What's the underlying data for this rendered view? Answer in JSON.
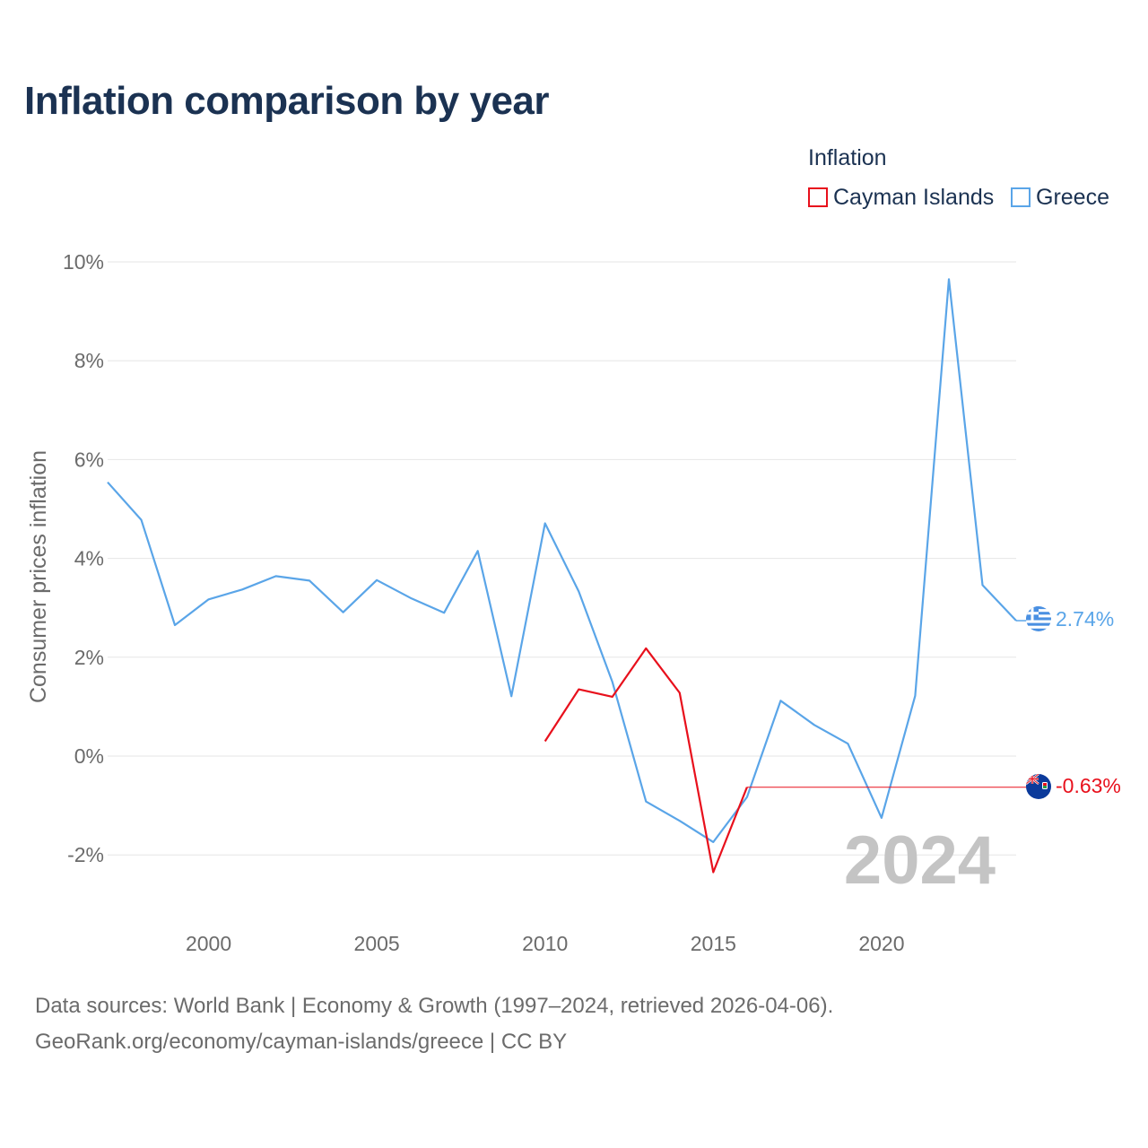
{
  "title": "Inflation comparison by year",
  "legend": {
    "title": "Inflation",
    "items": [
      {
        "label": "Cayman Islands",
        "color": "#e8101c"
      },
      {
        "label": "Greece",
        "color": "#5aa5e8"
      }
    ]
  },
  "watermark_year": "2024",
  "end_labels": {
    "greece": "2.74%",
    "cayman": "-0.63%"
  },
  "footer": {
    "line1": "Data sources: World Bank | Economy & Growth (1997–2024, retrieved 2026-04-06).",
    "line2": "GeoRank.org/economy/cayman-islands/greece | CC BY"
  },
  "chart_data": {
    "type": "line",
    "title": "Inflation comparison by year",
    "xlabel": "",
    "ylabel": "Consumer prices inflation",
    "xlim": [
      1997,
      2024
    ],
    "ylim": [
      -3,
      10
    ],
    "x_ticks": [
      2000,
      2005,
      2010,
      2015,
      2020
    ],
    "x_tick_labels": [
      "2000",
      "2005",
      "2010",
      "2015",
      "2020"
    ],
    "y_ticks": [
      -2,
      0,
      2,
      4,
      6,
      8,
      10
    ],
    "y_tick_labels": [
      "-2%",
      "0%",
      "2%",
      "4%",
      "6%",
      "8%",
      "10%"
    ],
    "grid": true,
    "legend_position": "top-right",
    "series": [
      {
        "name": "Cayman Islands",
        "color": "#e8101c",
        "points": [
          {
            "x": 2010,
            "y": 0.3
          },
          {
            "x": 2011,
            "y": 1.35
          },
          {
            "x": 2012,
            "y": 1.2
          },
          {
            "x": 2013,
            "y": 2.18
          },
          {
            "x": 2014,
            "y": 1.28
          },
          {
            "x": 2015,
            "y": -2.35
          },
          {
            "x": 2016,
            "y": -0.63
          }
        ],
        "carried_to": 2024,
        "last_value": -0.63
      },
      {
        "name": "Greece",
        "color": "#5aa5e8",
        "points": [
          {
            "x": 1997,
            "y": 5.54
          },
          {
            "x": 1998,
            "y": 4.78
          },
          {
            "x": 1999,
            "y": 2.65
          },
          {
            "x": 2000,
            "y": 3.17
          },
          {
            "x": 2001,
            "y": 3.37
          },
          {
            "x": 2002,
            "y": 3.64
          },
          {
            "x": 2003,
            "y": 3.55
          },
          {
            "x": 2004,
            "y": 2.91
          },
          {
            "x": 2005,
            "y": 3.56
          },
          {
            "x": 2006,
            "y": 3.2
          },
          {
            "x": 2007,
            "y": 2.9
          },
          {
            "x": 2008,
            "y": 4.15
          },
          {
            "x": 2009,
            "y": 1.21
          },
          {
            "x": 2010,
            "y": 4.71
          },
          {
            "x": 2011,
            "y": 3.33
          },
          {
            "x": 2012,
            "y": 1.5
          },
          {
            "x": 2013,
            "y": -0.92
          },
          {
            "x": 2014,
            "y": -1.31
          },
          {
            "x": 2015,
            "y": -1.74
          },
          {
            "x": 2016,
            "y": -0.83
          },
          {
            "x": 2017,
            "y": 1.12
          },
          {
            "x": 2018,
            "y": 0.63
          },
          {
            "x": 2019,
            "y": 0.25
          },
          {
            "x": 2020,
            "y": -1.25
          },
          {
            "x": 2021,
            "y": 1.22
          },
          {
            "x": 2022,
            "y": 9.65
          },
          {
            "x": 2023,
            "y": 3.46
          },
          {
            "x": 2024,
            "y": 2.74
          }
        ]
      }
    ]
  }
}
